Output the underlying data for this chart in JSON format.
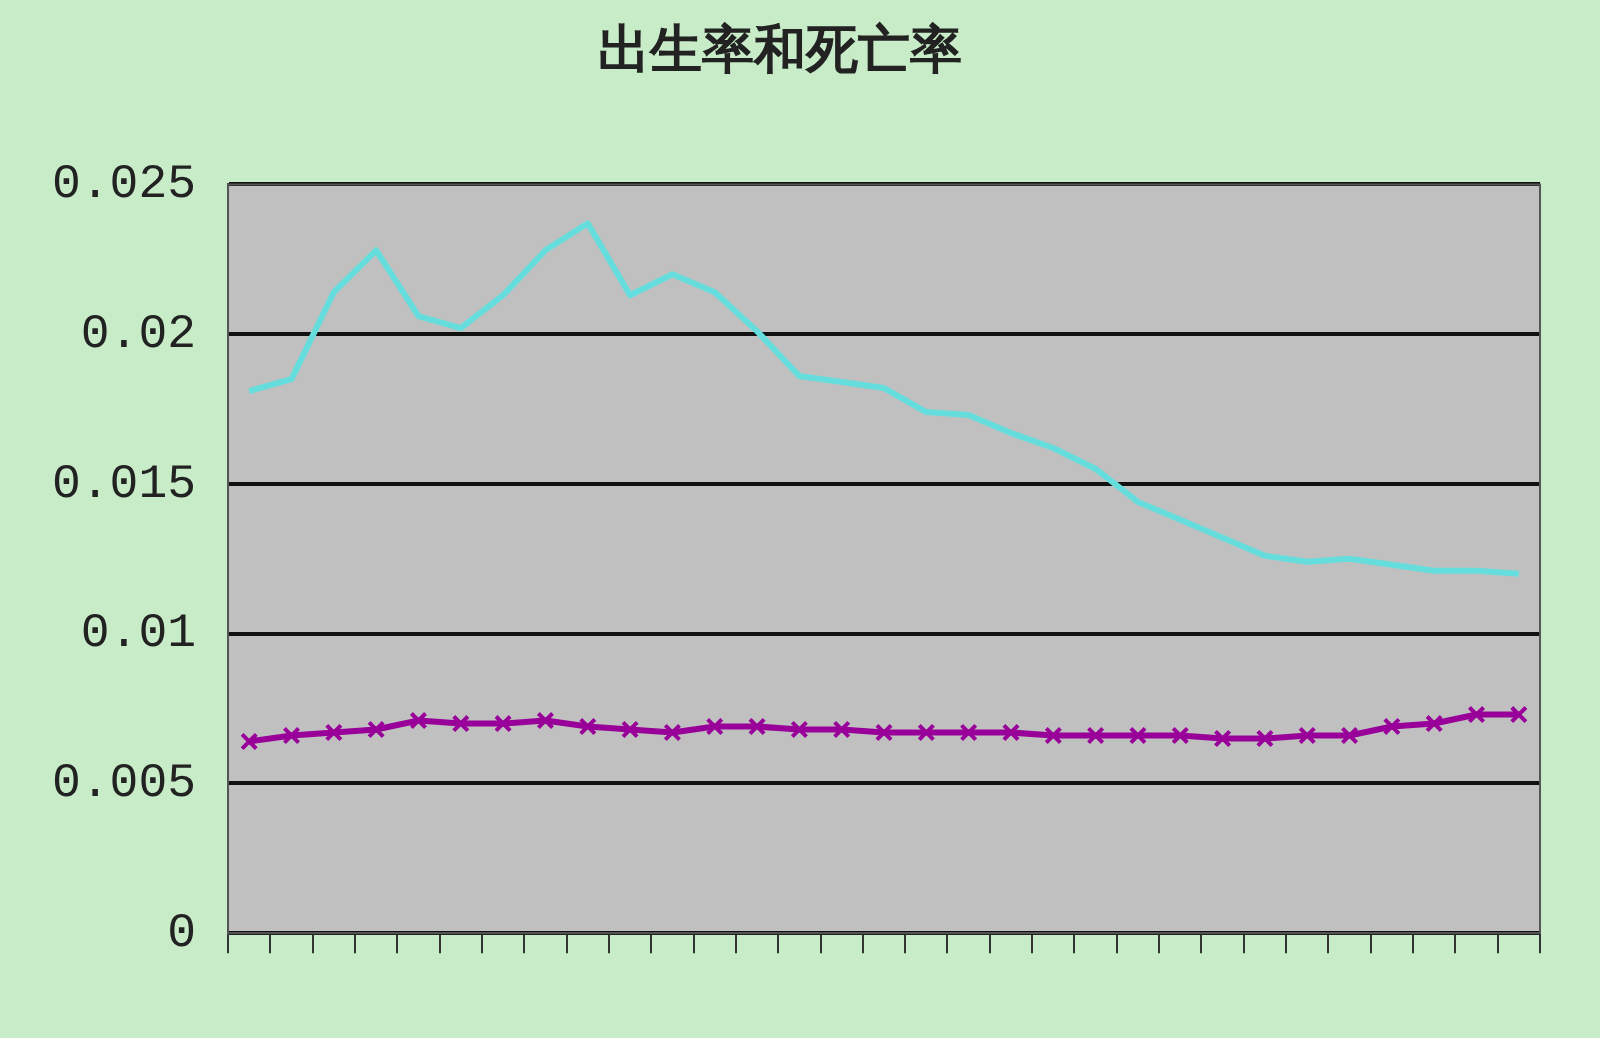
{
  "chart_data": {
    "type": "line",
    "title": "出生率和死亡率",
    "categories": [
      null,
      null,
      null,
      null,
      null,
      null,
      null,
      null,
      null,
      null,
      null,
      null,
      null,
      null,
      null,
      null,
      null,
      null,
      null,
      null,
      null,
      null,
      null,
      null,
      null,
      null,
      null,
      null,
      null,
      null,
      null
    ],
    "series": [
      {
        "color": "#66dddd",
        "marker": "none",
        "values": [
          0.0181,
          0.0185,
          0.0214,
          0.0228,
          0.0206,
          0.0202,
          0.0213,
          0.0228,
          0.0237,
          0.0213,
          0.022,
          0.0214,
          0.0201,
          0.0186,
          0.0184,
          0.0182,
          0.0174,
          0.0173,
          0.0167,
          0.0162,
          0.0155,
          0.0144,
          0.0138,
          0.0132,
          0.0126,
          0.0124,
          0.0125,
          0.0123,
          0.0121,
          0.0121,
          0.012
        ]
      },
      {
        "color": "#990099",
        "marker": "cross",
        "values": [
          0.0064,
          0.0066,
          0.0067,
          0.0068,
          0.0071,
          0.007,
          0.007,
          0.0071,
          0.0069,
          0.0068,
          0.0067,
          0.0069,
          0.0069,
          0.0068,
          0.0068,
          0.0067,
          0.0067,
          0.0067,
          0.0067,
          0.0066,
          0.0066,
          0.0066,
          0.0066,
          0.0065,
          0.0065,
          0.0066,
          0.0066,
          0.0069,
          0.007,
          0.0073,
          0.0073
        ]
      }
    ],
    "ylim": [
      0,
      0.025
    ],
    "yticks": [
      0,
      0.005,
      0.01,
      0.015,
      0.02,
      0.025
    ],
    "grid": "y",
    "legend": false
  }
}
